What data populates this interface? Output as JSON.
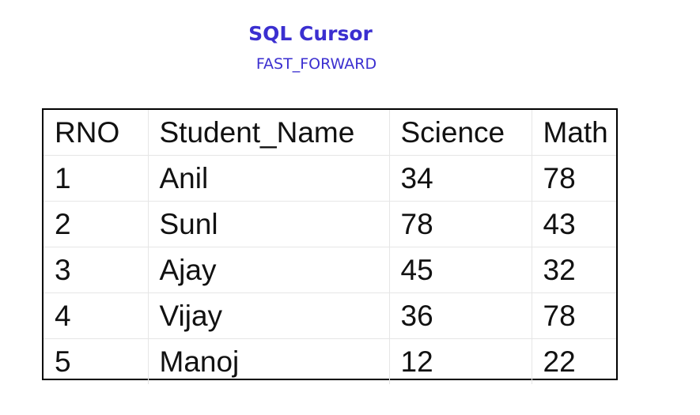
{
  "header": {
    "title": "SQL Cursor",
    "subtitle": "FAST_FORWARD"
  },
  "table": {
    "columns": [
      "RNO",
      "Student_Name",
      "Science",
      "Math"
    ],
    "rows": [
      [
        "1",
        "Anil",
        "34",
        "78"
      ],
      [
        "2",
        "Sunl",
        "78",
        "43"
      ],
      [
        "3",
        "Ajay",
        "45",
        "32"
      ],
      [
        "4",
        "Vijay",
        "36",
        "78"
      ],
      [
        "5",
        "Manoj",
        "12",
        "22"
      ]
    ]
  },
  "colors": {
    "title": "#3b2fd0",
    "grid_border": "#000000",
    "cell_lines": "#e6e6e6"
  }
}
